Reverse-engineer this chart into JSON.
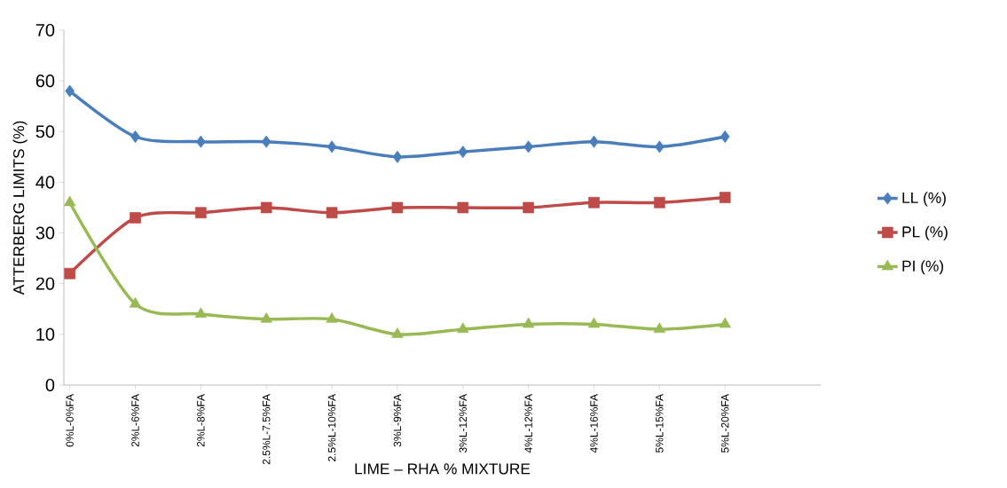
{
  "chart_data": {
    "type": "line",
    "ylabel": "ATTERBERG LIMITS (%)",
    "xlabel": "LIME – RHA % MIXTURE",
    "categories": [
      "0%L-0%FA",
      "2%L-6%FA",
      "2%L-8%FA",
      "2.5%L-7.5%FA",
      "2.5%L-10%FA",
      "3%L-9%FA",
      "3%L-12%FA",
      "4%L-12%FA",
      "4%L-16%FA",
      "5%L-15%FA",
      "5%L-20%FA"
    ],
    "series": [
      {
        "name": "LL (%)",
        "color": "#4a7ebb",
        "marker": "diamond",
        "values": [
          58,
          49,
          48,
          48,
          47,
          45,
          46,
          47,
          48,
          47,
          49
        ]
      },
      {
        "name": "PL (%)",
        "color": "#be4b48",
        "marker": "square",
        "values": [
          22,
          33,
          34,
          35,
          34,
          35,
          35,
          35,
          36,
          36,
          37
        ]
      },
      {
        "name": "PI (%)",
        "color": "#98b954",
        "marker": "triangle",
        "values": [
          36,
          16,
          14,
          13,
          13,
          10,
          11,
          12,
          12,
          11,
          12
        ]
      }
    ],
    "ylim": [
      0,
      70
    ],
    "yticks": [
      0,
      10,
      20,
      30,
      40,
      50,
      60,
      70
    ],
    "grid": false,
    "legend": "right",
    "line_style": "solid"
  }
}
